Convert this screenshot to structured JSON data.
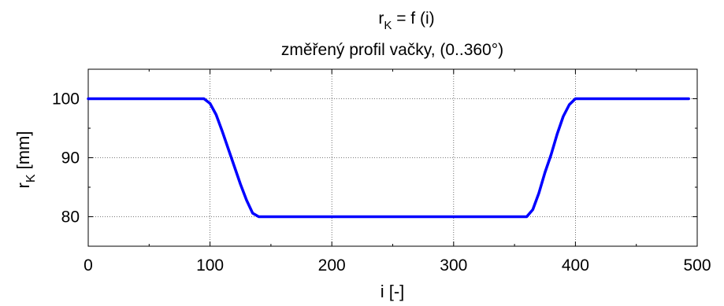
{
  "chart_data": {
    "type": "line",
    "title": {
      "main": "r",
      "main_sub": "K",
      "main_rest": " = f (i)",
      "subtitle": "změřený profil vačky, (0..360°)"
    },
    "xlabel": "i [-]",
    "ylabel": {
      "main": "r",
      "sub": "K",
      "rest": " [mm]"
    },
    "xlim": [
      0,
      500
    ],
    "ylim": [
      75,
      105
    ],
    "x_ticks": [
      0,
      100,
      200,
      300,
      400,
      500
    ],
    "y_ticks": [
      80,
      90,
      100
    ],
    "grid": true,
    "series": [
      {
        "color": "#0000ff",
        "x": [
          0,
          95,
          100,
          105,
          110,
          115,
          120,
          125,
          130,
          135,
          140,
          200,
          300,
          360,
          365,
          370,
          375,
          380,
          385,
          390,
          395,
          400,
          493
        ],
        "y": [
          100,
          100,
          99.2,
          97.3,
          94.5,
          91.5,
          88.5,
          85.5,
          82.8,
          80.6,
          80,
          80,
          80,
          80,
          81.2,
          84,
          87.5,
          90.5,
          94,
          97,
          99,
          100,
          100
        ]
      }
    ]
  }
}
